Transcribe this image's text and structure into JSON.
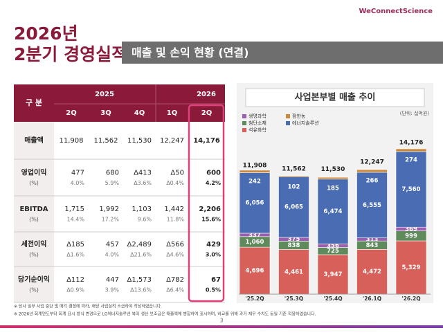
{
  "logo": "WeConnectScience",
  "title": [
    "2026년",
    "2분기 경영실적"
  ],
  "section": "매출 및 손익 현황 (연결)",
  "table": {
    "corner": "구 분",
    "years": [
      "2025",
      "2026"
    ],
    "quarters": [
      "2Q",
      "3Q",
      "4Q",
      "1Q",
      "2Q"
    ],
    "rows": [
      {
        "label": "매출액",
        "values": [
          "11,908",
          "11,562",
          "11,530",
          "12,247",
          "14,176"
        ]
      },
      {
        "label": "영업이익",
        "unit": "(%)",
        "values": [
          "477",
          "680",
          "Δ413",
          "Δ50",
          "600"
        ],
        "margins": [
          "4.0%",
          "5.9%",
          "Δ3.6%",
          "Δ0.4%",
          "4.2%"
        ]
      },
      {
        "label": "EBITDA",
        "unit": "(%)",
        "values": [
          "1,715",
          "1,992",
          "1,103",
          "1,442",
          "2,206"
        ],
        "margins": [
          "14.4%",
          "17.2%",
          "9.6%",
          "11.8%",
          "15.6%"
        ]
      },
      {
        "label": "세전이익",
        "unit": "(%)",
        "values": [
          "Δ185",
          "457",
          "Δ2,489",
          "Δ566",
          "429"
        ],
        "margins": [
          "Δ1.6%",
          "4.0%",
          "Δ21.6%",
          "Δ4.6%",
          "3.0%"
        ]
      },
      {
        "label": "당기순이익",
        "unit": "(%)",
        "values": [
          "Δ112",
          "447",
          "Δ1,573",
          "Δ782",
          "67"
        ],
        "margins": [
          "Δ0.9%",
          "3.9%",
          "Δ13.6%",
          "Δ6.4%",
          "0.5%"
        ]
      }
    ]
  },
  "chart_data": {
    "type": "stacked_bar",
    "title": "사업본부별 매출 추이",
    "unit": "(단위: 십억원)",
    "categories": [
      "'25.2Q",
      "'25.3Q",
      "'25.4Q",
      "'26.1Q",
      "'26.2Q"
    ],
    "ylim": [
      0,
      15500
    ],
    "series": [
      {
        "name": "석유화학",
        "color": "#d7615a",
        "values": [
          4696,
          4461,
          3947,
          4472,
          5329
        ],
        "value_labels": [
          "4,696",
          "4,461",
          "3,947",
          "4,472",
          "5,329"
        ]
      },
      {
        "name": "첨단소재",
        "color": "#5e8a5c",
        "values": [
          1060,
          838,
          725,
          843,
          999
        ],
        "value_labels": [
          "1,060",
          "838",
          "725",
          "843",
          "999"
        ]
      },
      {
        "name": "생명과학",
        "color": "#9a5fae",
        "values": [
          337,
          375,
          356,
          313,
          369
        ]
      },
      {
        "name": "에너지솔루션",
        "color": "#4a6cb3",
        "values": [
          6056,
          6065,
          6474,
          6555,
          7560
        ],
        "value_labels": [
          "6,056",
          "6,065",
          "6,474",
          "6,555",
          "7,560"
        ]
      },
      {
        "name": "팜한농",
        "color": "#c98a3e",
        "values": [
          242,
          102,
          185,
          266,
          274
        ]
      }
    ],
    "totals": {
      "values": [
        11908,
        11562,
        11530,
        12247,
        14176
      ],
      "value_labels": [
        "11,908",
        "11,562",
        "11,530",
        "12,247",
        "14,176"
      ]
    }
  },
  "footnotes": [
    "※ 당사 일부 사업 중단 및 매각 결정에 따라, 해당 사업실적 소급하여 작성하였습니다.",
    "※ 2026년 회계연도부터 회계 표시 방식 변경으로 LG에너지솔루션 북미 생산 보조금은 매출액에 병합하여 표시하며, 비교를 위해 과거 재무 수치도 동일 기준 적용하였습니다."
  ],
  "page": "3"
}
